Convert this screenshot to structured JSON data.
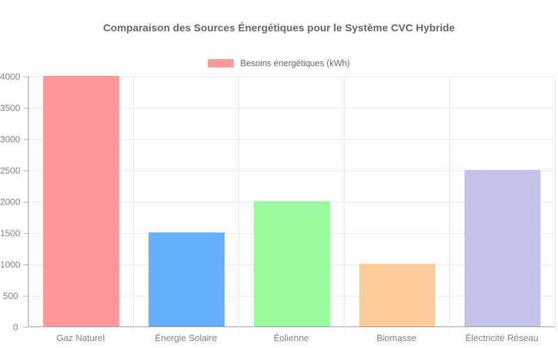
{
  "chart_data": {
    "type": "bar",
    "title": "Comparaison des Sources Énergétiques pour le Système CVC Hybride",
    "legend": {
      "label": "Besoins énergétiques (kWh)",
      "swatch_color": "#ff9999",
      "position": "top"
    },
    "categories": [
      "Gaz Naturel",
      "Énergie Solaire",
      "Éolienne",
      "Biomasse",
      "Électricité Réseau"
    ],
    "series": [
      {
        "name": "Besoins énergétiques (kWh)",
        "values": [
          4000,
          1500,
          2000,
          1000,
          2500
        ]
      }
    ],
    "bar_colors": [
      "#ff9999",
      "#64aff8",
      "#99fb9b",
      "#fecc99",
      "#c4c3ec"
    ],
    "xlabel": "",
    "ylabel": "",
    "ylim": [
      0,
      4000
    ],
    "ytick_step": 500,
    "ytick_labels": [
      "0",
      "500",
      "1000",
      "1500",
      "2000",
      "2500",
      "3000",
      "3500",
      "4000"
    ],
    "grid": true,
    "colors": {
      "title_text": "#666666",
      "axis_text": "#808080",
      "grid_line": "#e8e8e8",
      "axis_line": "#999999"
    }
  }
}
